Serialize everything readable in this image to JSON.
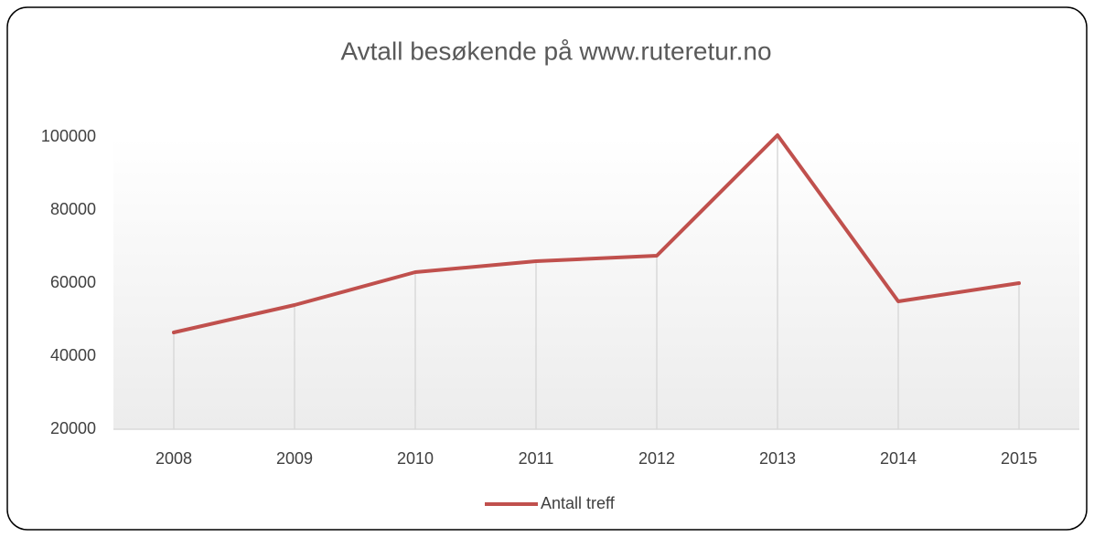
{
  "chart_data": {
    "type": "line",
    "title": "Avtall besøkende på www.ruteretur.no",
    "categories": [
      "2008",
      "2009",
      "2010",
      "2011",
      "2012",
      "2013",
      "2014",
      "2015"
    ],
    "series": [
      {
        "name": "Antall treff",
        "color": "#c0504d",
        "values": [
          46500,
          54000,
          63000,
          66000,
          67500,
          100500,
          55000,
          60000
        ]
      }
    ],
    "ylim": [
      20000,
      100000
    ],
    "yticks": [
      20000,
      40000,
      60000,
      80000,
      100000
    ],
    "drop_lines": true,
    "legend": "bottom"
  }
}
